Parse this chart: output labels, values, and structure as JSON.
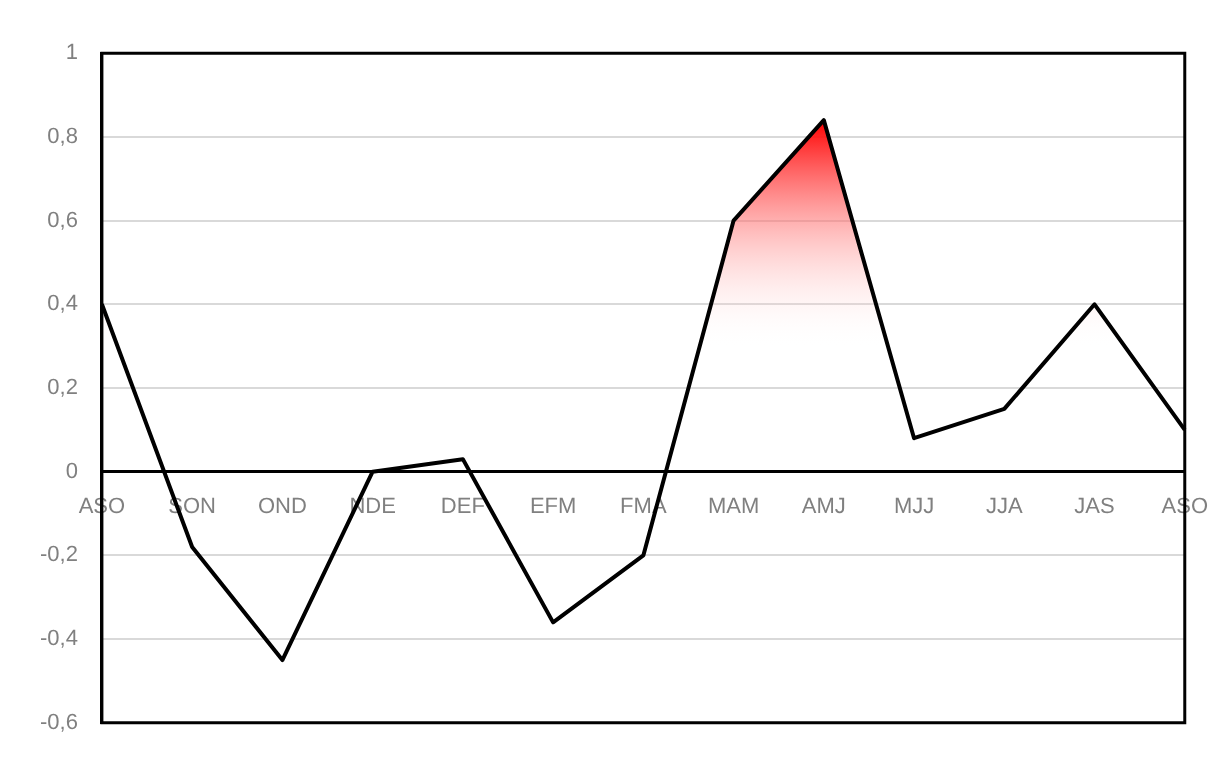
{
  "chart_data": {
    "type": "area",
    "categories": [
      "ASO",
      "SON",
      "OND",
      "NDE",
      "DEF",
      "EFM",
      "FMA",
      "MAM",
      "AMJ",
      "MJJ",
      "JJA",
      "JAS",
      "ASO"
    ],
    "series": [
      {
        "color": "#ff0000",
        "values": [
          0.4,
          -0.18,
          -0.45,
          0.0,
          0.03,
          -0.36,
          -0.2,
          0.6,
          0.84,
          0.08,
          0.15,
          0.4,
          0.1
        ]
      }
    ],
    "ylim": [
      -0.6,
      1
    ],
    "yticks": [
      {
        "value": -0.6,
        "label": "-0,6"
      },
      {
        "value": -0.4,
        "label": "-0,4"
      },
      {
        "value": -0.2,
        "label": "-0,2"
      },
      0,
      {
        "value": 0.2,
        "label": "0,2"
      },
      {
        "value": 0.4,
        "label": "0,4"
      },
      {
        "value": 0.6,
        "label": "0,6"
      },
      {
        "value": 0.8,
        "label": "0,8"
      },
      1
    ],
    "grid": "y",
    "legend": false,
    "marker": "none",
    "line_style": "solid"
  }
}
